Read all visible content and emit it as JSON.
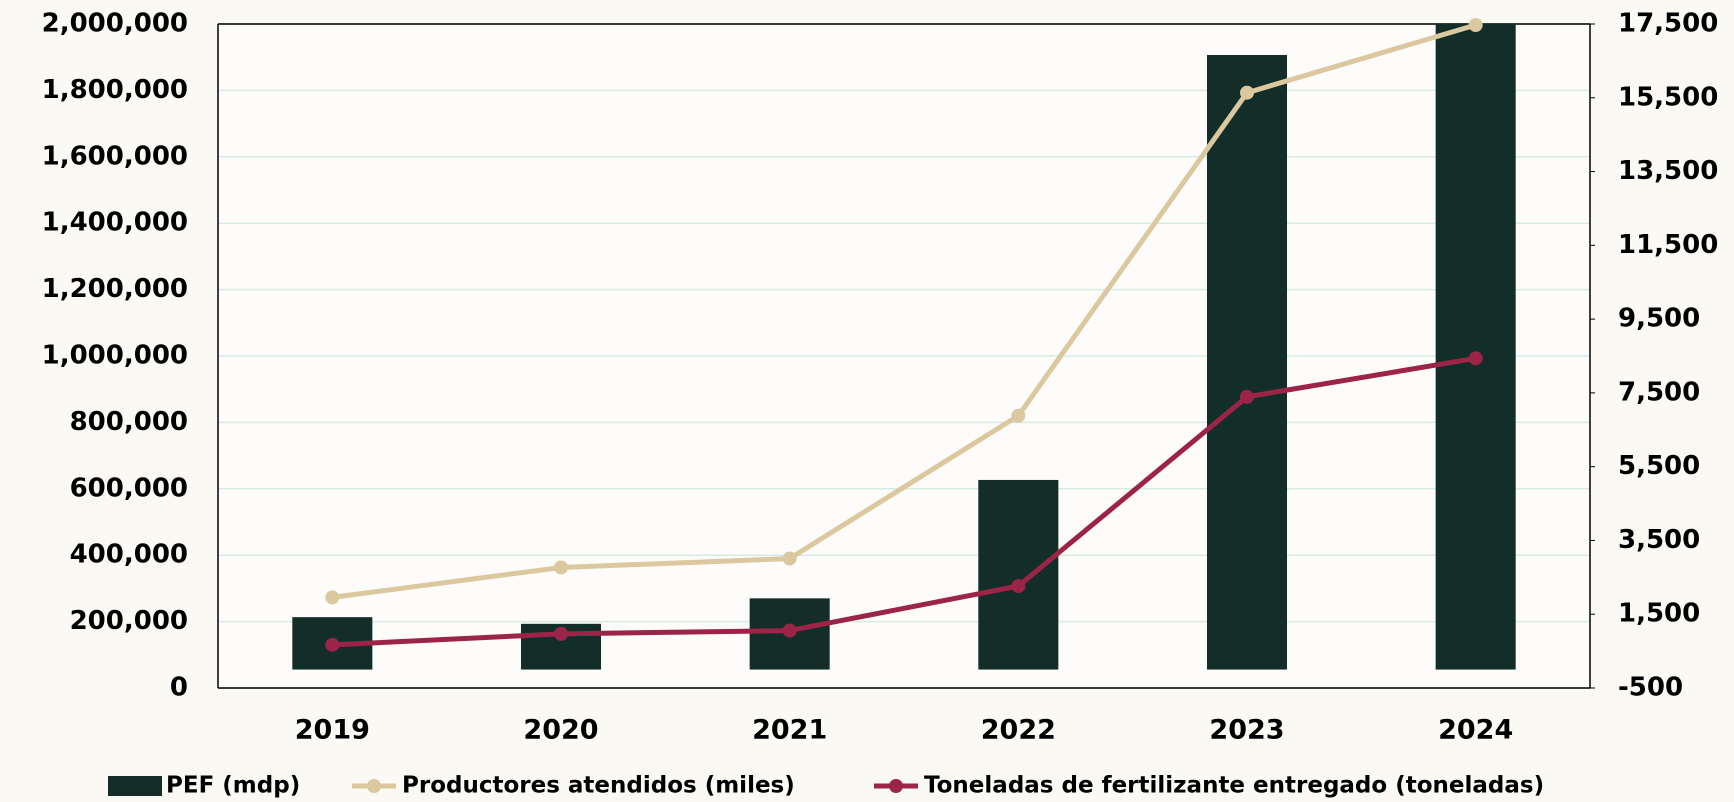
{
  "chart_data": {
    "type": "bar",
    "categories": [
      "2019",
      "2020",
      "2021",
      "2022",
      "2023",
      "2024"
    ],
    "series": [
      {
        "name": "PEF (mdp)",
        "type": "bar",
        "axis": "y2",
        "color": "#132e29",
        "values": [
          1420,
          1240,
          1930,
          5140,
          16660,
          17500
        ]
      },
      {
        "name": "Productores atendidos (miles)",
        "type": "line",
        "color": "#dcc89e",
        "values": [
          273000,
          363000,
          390000,
          820000,
          1793000,
          1997000
        ]
      },
      {
        "name": "Toneladas de fertilizante entregado (toneladas)",
        "type": "line",
        "color": "#9d2449",
        "values": [
          130000,
          163000,
          173000,
          307000,
          877000,
          993000
        ]
      }
    ],
    "ylim": [
      0,
      2000000
    ],
    "yticks": [
      0,
      {
        "value": 200000,
        "label": "200,000"
      },
      {
        "value": 400000,
        "label": "400,000"
      },
      {
        "value": 600000,
        "label": "600,000"
      },
      {
        "value": 800000,
        "label": "800,000"
      },
      {
        "value": 1000000,
        "label": "1,000,000"
      },
      {
        "value": 1200000,
        "label": "1,200,000"
      },
      {
        "value": 1400000,
        "label": "1,400,000"
      },
      {
        "value": 1600000,
        "label": "1,600,000"
      },
      {
        "value": 1800000,
        "label": "1,800,000"
      },
      {
        "value": 2000000,
        "label": "2,000,000"
      }
    ],
    "y2lim": [
      -500,
      17500
    ],
    "y2ticks": [
      -500,
      {
        "value": 1500,
        "label": "1,500"
      },
      {
        "value": 3500,
        "label": "3,500"
      },
      {
        "value": 5500,
        "label": "5,500"
      },
      {
        "value": 7500,
        "label": "7,500"
      },
      {
        "value": 9500,
        "label": "9,500"
      },
      {
        "value": 11500,
        "label": "11,500"
      },
      {
        "value": 13500,
        "label": "13,500"
      },
      {
        "value": 15500,
        "label": "15,500"
      },
      {
        "value": 17500,
        "label": "17,500"
      }
    ],
    "grid": true,
    "legend": "bottom"
  }
}
